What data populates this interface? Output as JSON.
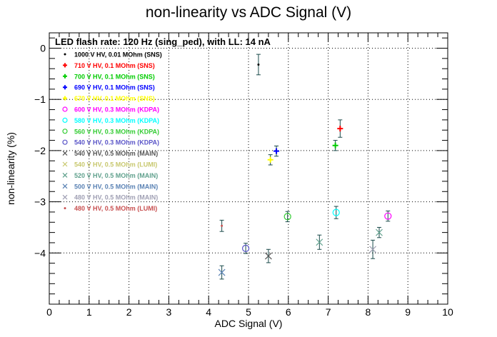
{
  "chart_data": {
    "type": "scatter",
    "title": "non-linearity vs ADC Signal (V)",
    "subtitle": "LED flash rate: 120 Hz  (sing_ped), with LL: 14 nA",
    "xlabel": "ADC Signal (V)",
    "ylabel": "non-linearity (%)",
    "xlim": [
      0,
      10
    ],
    "ylim": [
      -5,
      0.3
    ],
    "x_ticks": [
      0,
      1,
      2,
      3,
      4,
      5,
      6,
      7,
      8,
      9,
      10
    ],
    "y_ticks": [
      -4,
      -3,
      -2,
      -1,
      0
    ],
    "x_tick_labels": [
      "0",
      "1",
      "2",
      "3",
      "4",
      "5",
      "6",
      "7",
      "8",
      "9",
      "10"
    ],
    "y_tick_labels": [
      "−4",
      "−3",
      "−2",
      "−1",
      "0"
    ],
    "grid": true,
    "legend_position": "top-left",
    "series": [
      {
        "name": "1000 V HV, 0.01 MOhm (SNS)",
        "color": "#000000",
        "marker": "dot",
        "points": [
          {
            "x": 5.25,
            "y": -0.32,
            "err": 0.2
          }
        ]
      },
      {
        "name": "710 V HV, 0.1 MOhm (SNS)",
        "color": "#ff0000",
        "marker": "plus",
        "points": [
          {
            "x": 7.3,
            "y": -1.57,
            "err": 0.17
          }
        ]
      },
      {
        "name": "700 V HV, 0.1 MOhm (SNS)",
        "color": "#00cc00",
        "marker": "plus",
        "points": [
          {
            "x": 7.18,
            "y": -1.9,
            "err": 0.1
          }
        ]
      },
      {
        "name": "690 V HV, 0.1 MOhm (SNS)",
        "color": "#0000ff",
        "marker": "plus",
        "points": [
          {
            "x": 5.7,
            "y": -2.01,
            "err": 0.1
          }
        ]
      },
      {
        "name": "670 V HV, 0.1 MOhm (SNS)",
        "color": "#ffff00",
        "marker": "plus",
        "points": [
          {
            "x": 5.55,
            "y": -2.18,
            "err": 0.1
          }
        ]
      },
      {
        "name": "600 V HV, 0.3 MOhm (KDPA)",
        "color": "#ff00ff",
        "marker": "circle",
        "points": [
          {
            "x": 8.5,
            "y": -3.28,
            "err": 0.1
          }
        ]
      },
      {
        "name": "580 V HV, 0.3 MOhm (KDPA)",
        "color": "#00ffff",
        "marker": "circle",
        "points": [
          {
            "x": 7.2,
            "y": -3.21,
            "err": 0.12
          }
        ]
      },
      {
        "name": "560 V HV, 0.3 MOhm (KDPA)",
        "color": "#33cc33",
        "marker": "circle",
        "points": [
          {
            "x": 5.98,
            "y": -3.29,
            "err": 0.1
          }
        ]
      },
      {
        "name": "540 V HV, 0.3 MOhm (KDPA)",
        "color": "#5a55c8",
        "marker": "circle",
        "points": [
          {
            "x": 4.93,
            "y": -3.91,
            "err": 0.1
          }
        ]
      },
      {
        "name": "540 V HV, 0.5 MOhm (MAIN)",
        "color": "#555555",
        "marker": "cross",
        "points": [
          {
            "x": 5.5,
            "y": -4.06,
            "err": 0.13
          }
        ]
      },
      {
        "name": "540 V HV, 0.5 MOhm (LUMI)",
        "color": "#c8c86e",
        "marker": "cross",
        "points": []
      },
      {
        "name": "520 V HV, 0.5 MOhm (MAIN)",
        "color": "#5fa08c",
        "marker": "cross",
        "points": [
          {
            "x": 6.78,
            "y": -3.79,
            "err": 0.14
          },
          {
            "x": 8.28,
            "y": -3.6,
            "err": 0.1
          }
        ]
      },
      {
        "name": "500 V HV, 0.5 MOhm (MAIN)",
        "color": "#5a82b4",
        "marker": "cross",
        "points": [
          {
            "x": 4.33,
            "y": -4.38,
            "err": 0.13
          }
        ]
      },
      {
        "name": "480 V HV, 0.5 MOhm (MAIN)",
        "color": "#a0a0b4",
        "marker": "cross",
        "points": [
          {
            "x": 8.12,
            "y": -3.93,
            "err": 0.18
          }
        ]
      },
      {
        "name": "480 V HV, 0.5 MOhm (LUMI)",
        "color": "#c85050",
        "marker": "dot",
        "points": [
          {
            "x": 4.33,
            "y": -3.47,
            "err": 0.11
          }
        ]
      }
    ]
  }
}
